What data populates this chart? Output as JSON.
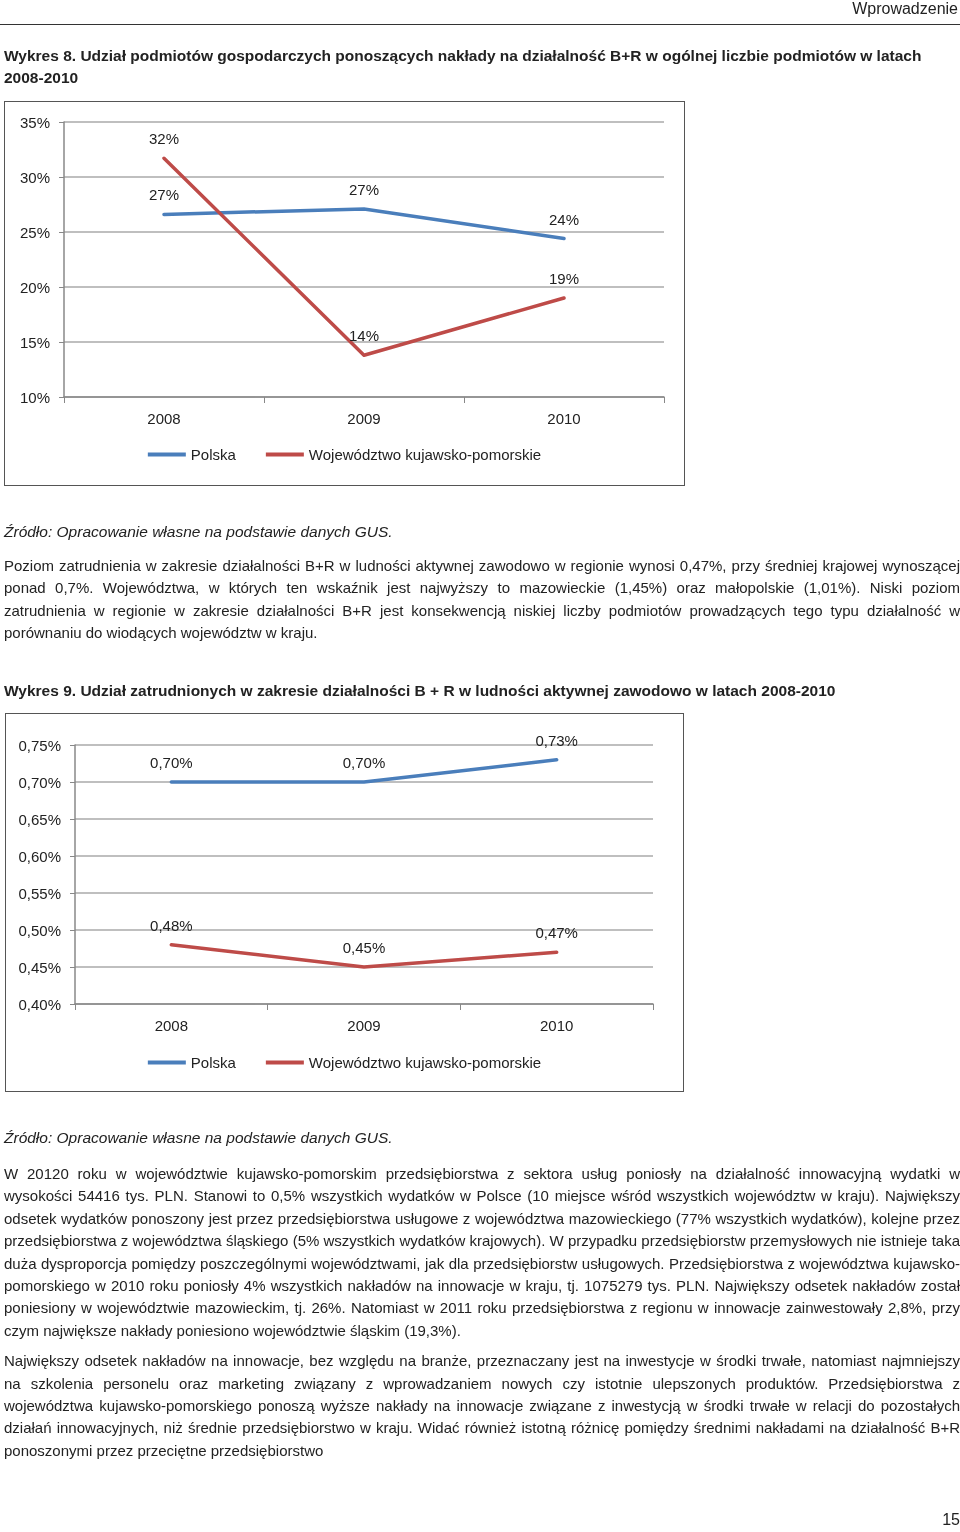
{
  "chart_data": [
    {
      "type": "other",
      "annotations": [
        "Wprowadzenie"
      ]
    },
    {
      "type": "line",
      "title": "Wykres 8. Udział podmiotów gospodarczych ponoszących nakłady na działalność B+R w ogólnej liczbie podmiotów w latach 2008-2010",
      "categories": [
        "2008",
        "2009",
        "2010"
      ],
      "series": [
        {
          "name": "Polska",
          "color": "#4a7ebb",
          "values": [
            26.6,
            27.1,
            24.4
          ],
          "value_labels": [
            "27%",
            "27%",
            "24%"
          ]
        },
        {
          "name": "Województwo kujawsko-pomorskie",
          "color": "#be4b48",
          "values": [
            31.7,
            13.8,
            19.0
          ],
          "value_labels": [
            "32%",
            "14%",
            "19%"
          ]
        }
      ],
      "ylim": [
        10,
        35
      ],
      "yticks": [
        {
          "value": 10,
          "label": "10%"
        },
        {
          "value": 15,
          "label": "15%"
        },
        {
          "value": 20,
          "label": "20%"
        },
        {
          "value": 25,
          "label": "25%"
        },
        {
          "value": 30,
          "label": "30%"
        },
        {
          "value": 35,
          "label": "35%"
        }
      ],
      "grid": "y",
      "legend": "bottom",
      "marker": "none",
      "line_style": "solid",
      "annotations": [
        "Źródło: Opracowanie własne na podstawie danych GUS."
      ]
    },
    {
      "type": "other",
      "annotations": [
        "Poziom zatrudnienia w zakresie działalności B+R w ludności aktywnej zawodowo w regionie wynosi 0,47%, przy średniej krajowej wynoszącej ponad 0,7%. Województwa, w których ten wskaźnik jest najwyższy to mazowieckie (1,45%) oraz małopolskie (1,01%). Niski poziom zatrudnienia w regionie w zakresie działalności B+R jest konsekwencją niskiej liczby podmiotów prowadzących tego typu działalność w porównaniu do wiodących województw w kraju."
      ]
    },
    {
      "type": "line",
      "title": "Wykres 9. Udział zatrudnionych w zakresie działalności B + R w ludności aktywnej zawodowo w latach 2008-2010",
      "categories": [
        "2008",
        "2009",
        "2010"
      ],
      "series": [
        {
          "name": "Polska",
          "color": "#4a7ebb",
          "values": [
            0.7,
            0.7,
            0.73
          ],
          "value_labels": [
            "0,70%",
            "0,70%",
            "0,73%"
          ]
        },
        {
          "name": "Województwo kujawsko-pomorskie",
          "color": "#be4b48",
          "values": [
            0.48,
            0.45,
            0.47
          ],
          "value_labels": [
            "0,48%",
            "0,45%",
            "0,47%"
          ]
        }
      ],
      "ylim": [
        0.4,
        0.75
      ],
      "yticks": [
        {
          "value": 0.4,
          "label": "0,40%"
        },
        {
          "value": 0.45,
          "label": "0,45%"
        },
        {
          "value": 0.5,
          "label": "0,50%"
        },
        {
          "value": 0.55,
          "label": "0,55%"
        },
        {
          "value": 0.6,
          "label": "0,60%"
        },
        {
          "value": 0.65,
          "label": "0,65%"
        },
        {
          "value": 0.7,
          "label": "0,70%"
        },
        {
          "value": 0.75,
          "label": "0,75%"
        }
      ],
      "grid": "y",
      "legend": "bottom",
      "marker": "none",
      "line_style": "solid",
      "annotations": [
        "Źródło: Opracowanie własne na podstawie danych GUS."
      ]
    },
    {
      "type": "other",
      "annotations": [
        "W 20120 roku w województwie kujawsko-pomorskim przedsiębiorstwa z sektora usług poniosły na działalność innowacyjną wydatki w wysokości 54416 tys. PLN. Stanowi to 0,5% wszystkich wydatków w Polsce (10 miejsce wśród wszystkich województw w kraju). Największy odsetek wydatków ponoszony jest przez przedsiębiorstwa usługowe z województwa mazowieckiego (77% wszystkich wydatków), kolejne przez przedsiębiorstwa z województwa śląskiego (5% wszystkich wydatków krajowych). W przypadku przedsiębiorstw przemysłowych nie istnieje taka duża dysproporcja pomiędzy poszczególnymi województwami, jak dla przedsiębiorstw usługowych. Przedsiębiorstwa z województwa kujawsko-pomorskiego w 2010 roku poniosły 4% wszystkich nakładów na innowacje w kraju, tj. 1075279 tys. PLN. Największy odsetek nakładów został poniesiony w województwie mazowieckim, tj. 26%. Natomiast w 2011 roku przedsiębiorstwa z regionu w innowacje zainwestowały 2,8%, przy czym największe nakłady poniesiono województwie śląskim (19,3%).",
        "Największy odsetek nakładów na innowacje, bez względu na branże, przeznaczany jest na inwestycje w środki trwałe, natomiast najmniejszy na szkolenia personelu oraz marketing związany z wprowadzaniem nowych czy istotnie ulepszonych produktów. Przedsiębiorstwa z województwa kujawsko-pomorskiego ponoszą wyższe nakłady na innowacje związane z inwestycją w środki trwałe w relacji do pozostałych działań innowacyjnych, niż średnie przedsiębiorstwo w kraju. Widać również istotną różnicę pomiędzy średnimi nakładami na działalność B+R ponoszonymi przez przeciętne przedsiębiorstwo",
        "15"
      ]
    }
  ]
}
